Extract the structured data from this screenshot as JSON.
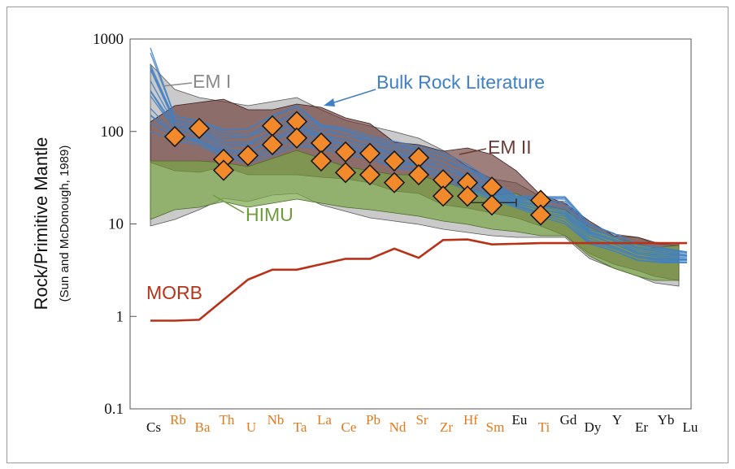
{
  "chart_data": {
    "type": "line",
    "ylabel": "Rock/Primitive Mantle",
    "ylabel_sub": "(Sun and McDonough, 1989)",
    "yscale": "log",
    "ylim": [
      0.1,
      1000
    ],
    "yticks": [
      "0.1",
      "1",
      "10",
      "100",
      "1000"
    ],
    "categories": [
      "Cs",
      "Rb",
      "Ba",
      "Th",
      "U",
      "Nb",
      "Ta",
      "La",
      "Ce",
      "Pb",
      "Nd",
      "Sr",
      "Zr",
      "Hf",
      "Sm",
      "Eu",
      "Ti",
      "Gd",
      "Dy",
      "Y",
      "Er",
      "Yb",
      "Lu"
    ],
    "highlighted_categories": [
      "Rb",
      "Ba",
      "Th",
      "U",
      "Nb",
      "Ta",
      "La",
      "Ce",
      "Pb",
      "Nd",
      "Sr",
      "Zr",
      "Hf",
      "Sm",
      "Ti"
    ],
    "colors": {
      "em1": "#8a8a8a",
      "em2": "#6b3a35",
      "himu": "#7aa647",
      "bulk": "#3f7fc4",
      "morb": "#b83218",
      "diamond_fill": "#f28a2c",
      "orange_label": "#e07a1c"
    },
    "annotations": {
      "em1": "EM I",
      "em2": "EM II",
      "himu": "HIMU",
      "bulk": "Bulk Rock Literature",
      "morb": "MORB"
    },
    "series": [
      {
        "name": "MORB",
        "values": [
          0.9,
          0.9,
          0.92,
          null,
          2.5,
          3.2,
          3.2,
          null,
          4.2,
          4.2,
          5.4,
          4.3,
          6.7,
          6.8,
          6.0,
          null,
          6.2,
          6.2,
          6.2,
          6.2,
          6.2,
          6.2,
          6.2
        ]
      }
    ],
    "bulk_rock_envelope": {
      "upper": [
        800,
        150,
        130,
        105,
        110,
        150,
        190,
        120,
        110,
        90,
        80,
        70,
        60,
        45,
        30,
        20,
        20,
        20,
        10,
        8,
        6,
        5.5,
        5
      ],
      "lower": [
        100,
        80,
        70,
        50,
        45,
        55,
        70,
        65,
        55,
        50,
        40,
        38,
        30,
        22,
        18,
        15,
        12,
        10,
        6,
        5,
        4,
        3.8,
        3.8
      ]
    },
    "sample_diamonds": [
      {
        "element": "Rb",
        "values": [
          88
        ]
      },
      {
        "element": "Ba",
        "values": [
          108
        ]
      },
      {
        "element": "Th",
        "values": [
          50,
          38
        ]
      },
      {
        "element": "U",
        "values": [
          55
        ]
      },
      {
        "element": "Nb",
        "values": [
          115,
          72
        ]
      },
      {
        "element": "Ta",
        "values": [
          128,
          85
        ]
      },
      {
        "element": "La",
        "values": [
          75,
          48
        ]
      },
      {
        "element": "Ce",
        "values": [
          60,
          36
        ]
      },
      {
        "element": "Pb",
        "values": [
          58,
          34
        ]
      },
      {
        "element": "Nd",
        "values": [
          48,
          28
        ]
      },
      {
        "element": "Sr",
        "values": [
          52,
          34
        ]
      },
      {
        "element": "Zr",
        "values": [
          30,
          20
        ]
      },
      {
        "element": "Hf",
        "values": [
          28,
          20
        ]
      },
      {
        "element": "Sm",
        "values": [
          25,
          16
        ]
      },
      {
        "element": "Ti",
        "values": [
          18,
          12.5
        ]
      }
    ],
    "error_bar": {
      "from_element": "Hf",
      "to_element": "Ti",
      "value": 17
    }
  }
}
